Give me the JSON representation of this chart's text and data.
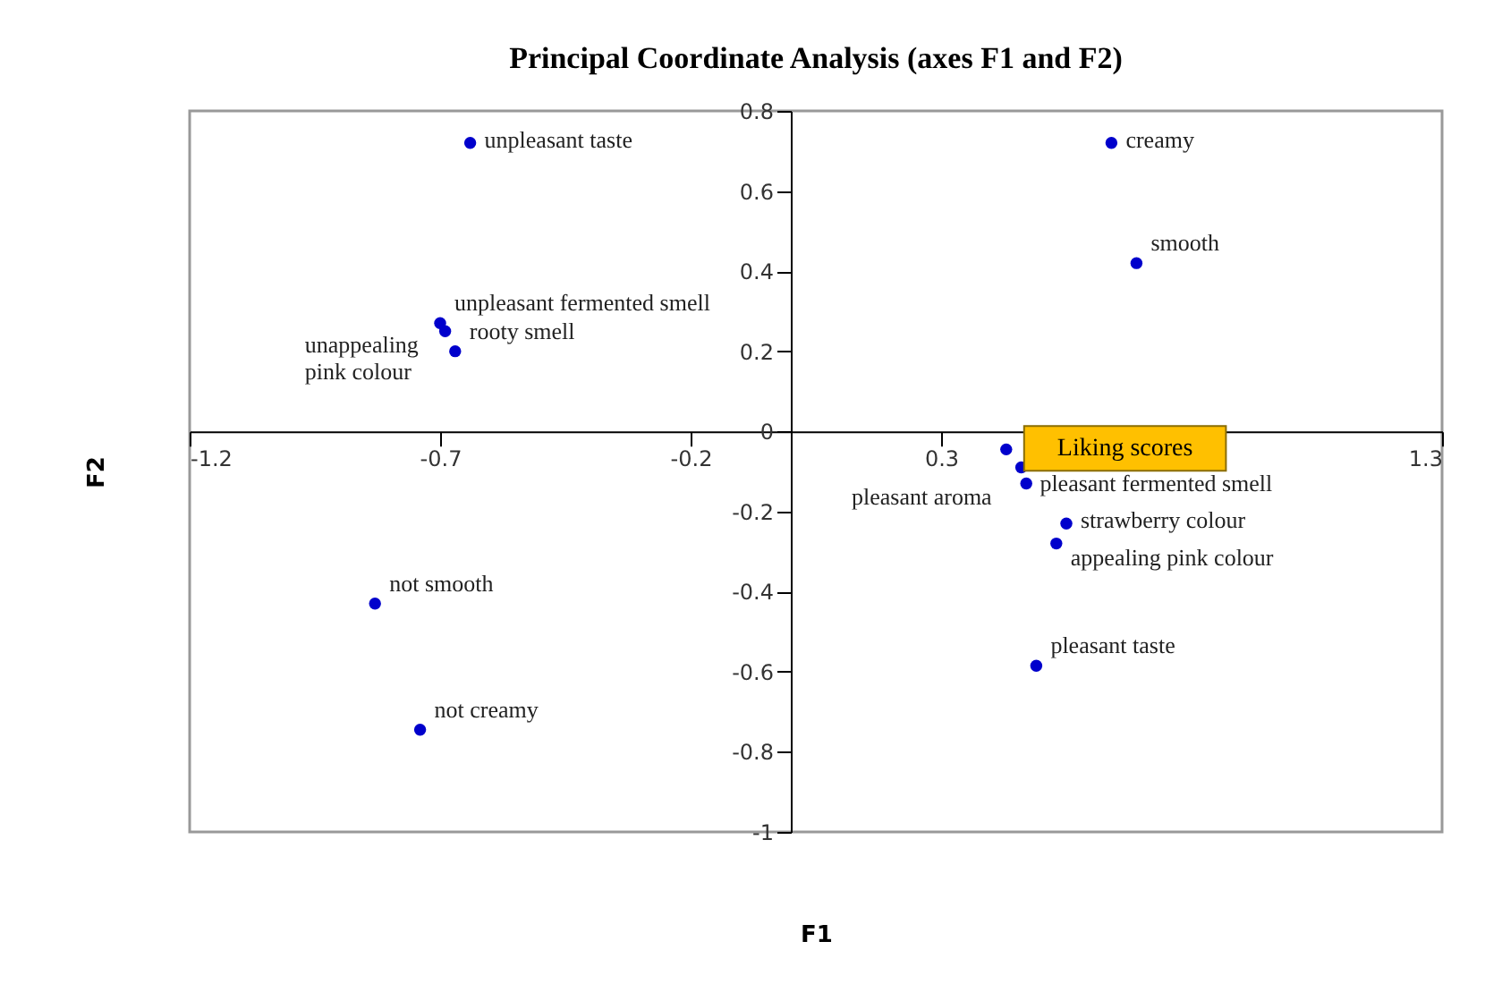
{
  "chart_data": {
    "type": "scatter",
    "title": "Principal Coordinate Analysis (axes F1 and F2)",
    "xlabel": "F1",
    "ylabel": "F2",
    "xlim": [
      -1.2,
      1.3
    ],
    "xticks": [
      -1.2,
      -0.7,
      -0.2,
      0.3,
      {
        "value": 0.8,
        "label": null
      },
      1.3
    ],
    "ylim": [
      -1,
      0.8
    ],
    "yticks": [
      -1,
      -0.8,
      -0.6,
      -0.4,
      -0.2,
      0,
      0.2,
      0.4,
      0.6,
      0.8
    ],
    "grid": false,
    "marker": "circle",
    "series": [
      {
        "name": "unpleasant taste",
        "color": "#0000cc",
        "x": [
          -0.64
        ],
        "values": [
          0.72
        ]
      },
      {
        "name": "unpleasant fermented smell",
        "color": "#0000cc",
        "x": [
          -0.7
        ],
        "values": [
          0.27
        ]
      },
      {
        "name": "unappealing pink colour",
        "color": "#0000cc",
        "x": [
          -0.69
        ],
        "values": [
          0.25
        ]
      },
      {
        "name": "rooty smell",
        "color": "#0000cc",
        "x": [
          -0.67
        ],
        "values": [
          0.2
        ]
      },
      {
        "name": "creamy",
        "color": "#0000cc",
        "x": [
          0.64
        ],
        "values": [
          0.72
        ]
      },
      {
        "name": "smooth",
        "color": "#0000cc",
        "x": [
          0.69
        ],
        "values": [
          0.42
        ]
      },
      {
        "color": "#0000cc",
        "x": [
          0.43
        ],
        "values": [
          -0.045
        ]
      },
      {
        "name": "pleasant fermented smell",
        "color": "#0000cc",
        "x": [
          0.46
        ],
        "values": [
          -0.09
        ]
      },
      {
        "name": "pleasant aroma",
        "color": "#0000cc",
        "x": [
          0.47
        ],
        "values": [
          -0.13
        ]
      },
      {
        "name": "strawberry colour",
        "color": "#0000cc",
        "x": [
          0.55
        ],
        "values": [
          -0.23
        ]
      },
      {
        "name": "appealing pink colour",
        "color": "#0000cc",
        "x": [
          0.53
        ],
        "values": [
          -0.28
        ]
      },
      {
        "name": "pleasant taste",
        "color": "#0000cc",
        "x": [
          0.49
        ],
        "values": [
          -0.585
        ]
      },
      {
        "name": "not smooth",
        "color": "#0000cc",
        "x": [
          -0.83
        ],
        "values": [
          -0.43
        ]
      },
      {
        "name": "not creamy",
        "color": "#0000cc",
        "x": [
          -0.74
        ],
        "values": [
          -0.745
        ]
      }
    ],
    "annotations": [
      {
        "text": "Liking scores",
        "x": 0.43,
        "y": -0.045
      }
    ]
  }
}
